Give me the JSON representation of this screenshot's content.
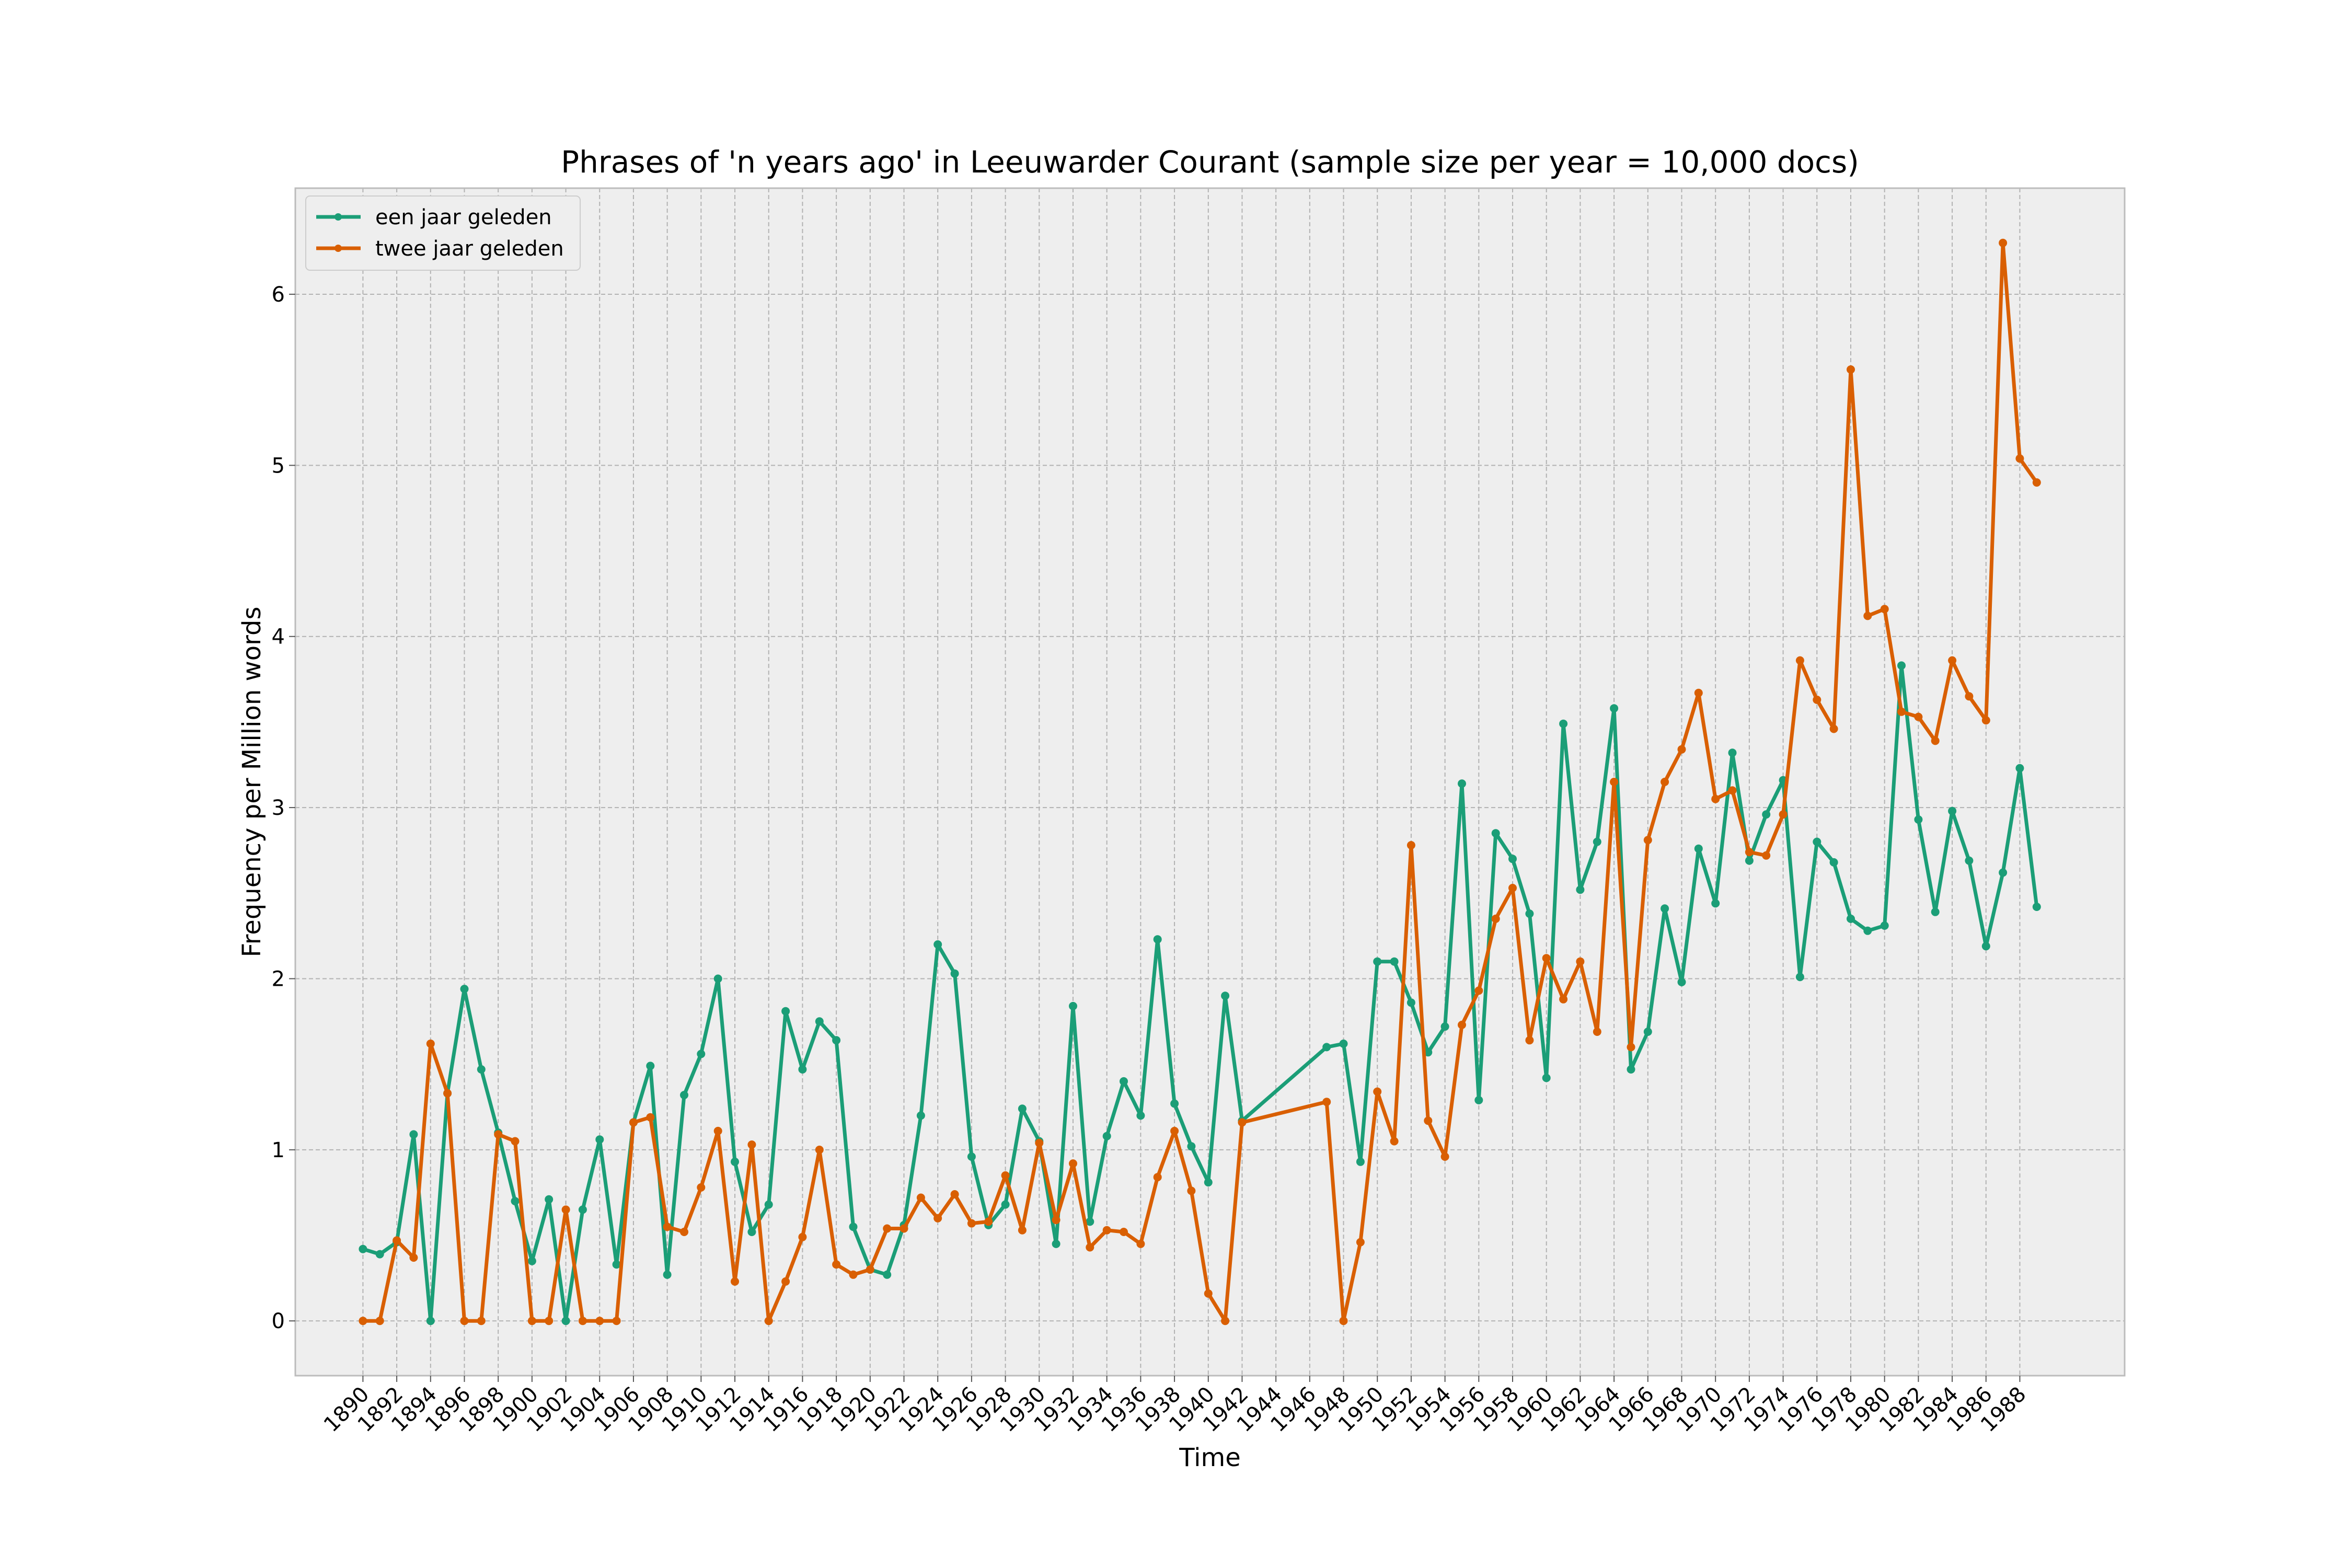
{
  "chart_data": {
    "type": "line",
    "title": "Phrases of 'n years ago' in Leeuwarder Courant (sample size per year = 10,000 docs)",
    "xlabel": "Time",
    "ylabel": "Frequency per Million words",
    "xlim": [
      1886.0,
      1994.2
    ],
    "ylim": [
      -0.32,
      6.62
    ],
    "x_ticks": [
      1890,
      1892,
      1894,
      1896,
      1898,
      1900,
      1902,
      1904,
      1906,
      1908,
      1910,
      1912,
      1914,
      1916,
      1918,
      1920,
      1922,
      1924,
      1926,
      1928,
      1930,
      1932,
      1934,
      1936,
      1938,
      1940,
      1942,
      1944,
      1946,
      1948,
      1950,
      1952,
      1954,
      1956,
      1958,
      1960,
      1962,
      1964,
      1966,
      1968,
      1970,
      1972,
      1974,
      1976,
      1978,
      1980,
      1982,
      1984,
      1986,
      1988
    ],
    "y_ticks": [
      0,
      1,
      2,
      3,
      4,
      5,
      6
    ],
    "grid": true,
    "legend_position": "upper-left",
    "series": [
      {
        "name": "een jaar geleden",
        "color": "#1b9e77",
        "x": [
          1890,
          1891,
          1892,
          1893,
          1894,
          1895,
          1896,
          1897,
          1898,
          1899,
          1900,
          1901,
          1902,
          1903,
          1904,
          1905,
          1906,
          1907,
          1908,
          1909,
          1910,
          1911,
          1912,
          1913,
          1914,
          1915,
          1916,
          1917,
          1918,
          1919,
          1920,
          1921,
          1922,
          1923,
          1924,
          1925,
          1926,
          1927,
          1928,
          1929,
          1930,
          1931,
          1932,
          1933,
          1934,
          1935,
          1936,
          1937,
          1938,
          1939,
          1940,
          1941,
          1942,
          1947,
          1948,
          1949,
          1950,
          1951,
          1952,
          1953,
          1954,
          1955,
          1956,
          1957,
          1958,
          1959,
          1960,
          1961,
          1962,
          1963,
          1964,
          1965,
          1966,
          1967,
          1968,
          1969,
          1970,
          1971,
          1972,
          1973,
          1974,
          1975,
          1976,
          1977,
          1978,
          1979,
          1980,
          1981,
          1982,
          1983,
          1984,
          1985,
          1986,
          1987,
          1988,
          1989
        ],
        "y": [
          0.42,
          0.39,
          0.46,
          1.09,
          0.0,
          1.33,
          1.94,
          1.47,
          1.1,
          0.7,
          0.35,
          0.71,
          0.0,
          0.65,
          1.06,
          0.33,
          1.16,
          1.49,
          0.27,
          1.32,
          1.56,
          2.0,
          0.93,
          0.52,
          0.68,
          1.81,
          1.47,
          1.75,
          1.64,
          0.55,
          0.3,
          0.27,
          0.56,
          1.2,
          2.2,
          2.03,
          0.96,
          0.56,
          0.68,
          1.24,
          1.05,
          0.45,
          1.84,
          0.58,
          1.08,
          1.4,
          1.2,
          2.23,
          1.27,
          1.02,
          0.81,
          1.9,
          1.17,
          1.6,
          1.62,
          0.93,
          2.1,
          2.1,
          1.86,
          1.57,
          1.72,
          3.14,
          1.29,
          2.85,
          2.7,
          2.38,
          1.42,
          3.49,
          2.52,
          2.8,
          3.58,
          1.47,
          1.69,
          2.41,
          1.98,
          2.76,
          2.44,
          3.32,
          2.69,
          2.96,
          3.16,
          2.01,
          2.8,
          2.68,
          2.35,
          2.28,
          2.31,
          3.83,
          2.93,
          2.39,
          2.98,
          2.69,
          2.19,
          2.62,
          3.23,
          2.42
        ]
      },
      {
        "name": "twee jaar geleden",
        "color": "#d95f02",
        "x": [
          1890,
          1891,
          1892,
          1893,
          1894,
          1895,
          1896,
          1897,
          1898,
          1899,
          1900,
          1901,
          1902,
          1903,
          1904,
          1905,
          1906,
          1907,
          1908,
          1909,
          1910,
          1911,
          1912,
          1913,
          1914,
          1915,
          1916,
          1917,
          1918,
          1919,
          1920,
          1921,
          1922,
          1923,
          1924,
          1925,
          1926,
          1927,
          1928,
          1929,
          1930,
          1931,
          1932,
          1933,
          1934,
          1935,
          1936,
          1937,
          1938,
          1939,
          1940,
          1941,
          1942,
          1947,
          1948,
          1949,
          1950,
          1951,
          1952,
          1953,
          1954,
          1955,
          1956,
          1957,
          1958,
          1959,
          1960,
          1961,
          1962,
          1963,
          1964,
          1965,
          1966,
          1967,
          1968,
          1969,
          1970,
          1971,
          1972,
          1973,
          1974,
          1975,
          1976,
          1977,
          1978,
          1979,
          1980,
          1981,
          1982,
          1983,
          1984,
          1985,
          1986,
          1987,
          1988,
          1989
        ],
        "y": [
          0.0,
          0.0,
          0.47,
          0.37,
          1.62,
          1.33,
          0.0,
          0.0,
          1.09,
          1.05,
          0.0,
          0.0,
          0.65,
          0.0,
          0.0,
          0.0,
          1.16,
          1.19,
          0.55,
          0.52,
          0.78,
          1.11,
          0.23,
          1.03,
          0.0,
          0.23,
          0.49,
          1.0,
          0.33,
          0.27,
          0.3,
          0.54,
          0.54,
          0.72,
          0.6,
          0.74,
          0.57,
          0.58,
          0.85,
          0.53,
          1.04,
          0.59,
          0.92,
          0.43,
          0.53,
          0.52,
          0.45,
          0.84,
          1.11,
          0.76,
          0.16,
          0.0,
          1.16,
          1.28,
          0.0,
          0.46,
          1.34,
          1.05,
          2.78,
          1.17,
          0.96,
          1.73,
          1.93,
          2.35,
          2.53,
          1.64,
          2.12,
          1.88,
          2.1,
          1.69,
          3.15,
          1.6,
          2.81,
          3.15,
          3.34,
          3.67,
          3.05,
          3.1,
          2.74,
          2.72,
          2.96,
          3.86,
          3.63,
          3.46,
          5.56,
          4.12,
          4.16,
          3.56,
          3.53,
          3.39,
          3.86,
          3.65,
          3.51,
          6.3,
          5.04,
          4.9
        ]
      }
    ]
  }
}
